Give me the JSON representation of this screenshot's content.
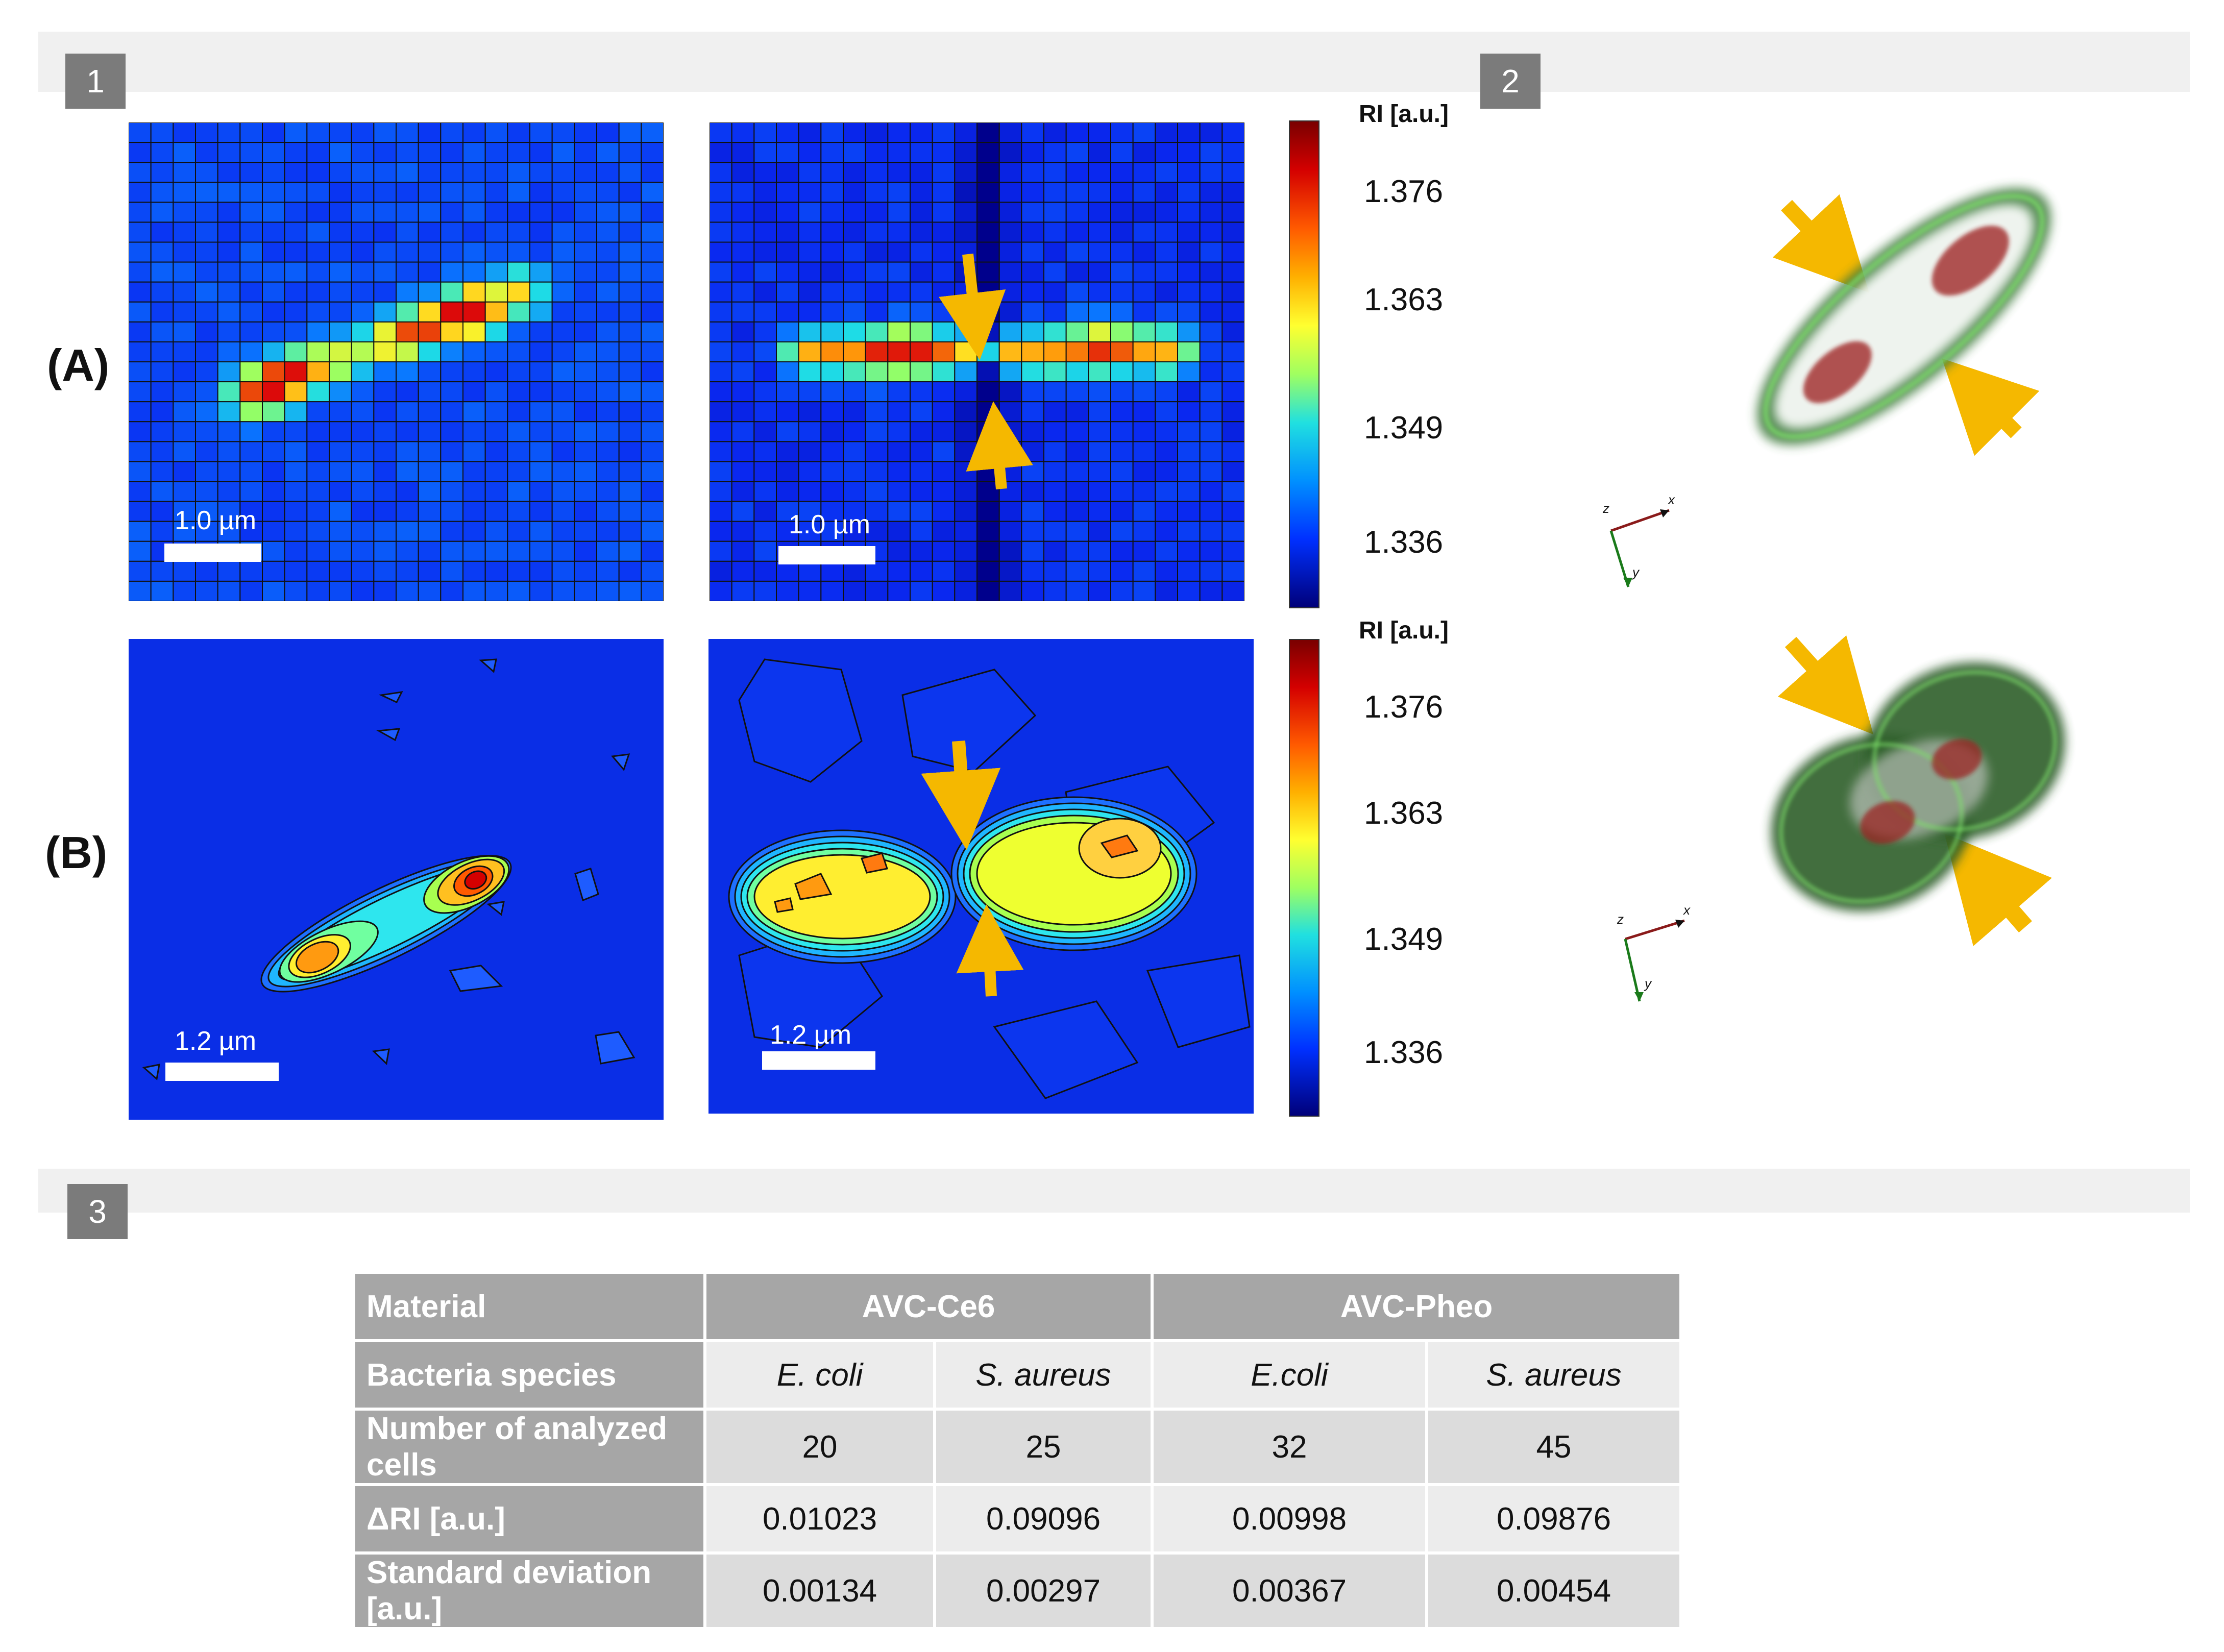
{
  "panels": {
    "p1": "1",
    "p2": "2",
    "p3": "3"
  },
  "rows": {
    "a": "(A)",
    "b": "(B)"
  },
  "scale_bars": {
    "a_left": "1.0 µm",
    "a_right": "1.0 µm",
    "b_left": "1.2 µm",
    "b_right": "1.2 µm"
  },
  "colorbar": {
    "title": "RI [a.u.]",
    "ticks": [
      "1.376",
      "1.363",
      "1.349",
      "1.336"
    ]
  },
  "axes3d": {
    "x": "x",
    "y": "y",
    "z": "z"
  },
  "table": {
    "row_headers": [
      "Material",
      "Bacteria species",
      "Number of analyzed cells",
      "ΔRI [a.u.]",
      "Standard deviation [a.u.]"
    ],
    "materials": [
      "AVC-Ce6",
      "AVC-Pheo"
    ],
    "species": [
      "E. coli",
      "S. aureus",
      "E.coli",
      "S. aureus"
    ],
    "cells": [
      "20",
      "25",
      "32",
      "45"
    ],
    "delta_ri": [
      "0.01023",
      "0.09096",
      "0.00998",
      "0.09876"
    ],
    "std_dev": [
      "0.00134",
      "0.00297",
      "0.00367",
      "0.00454"
    ]
  },
  "colors": {
    "arrow": "#f5b800",
    "badge": "#7b7b7b",
    "header": "#a6a6a6"
  }
}
